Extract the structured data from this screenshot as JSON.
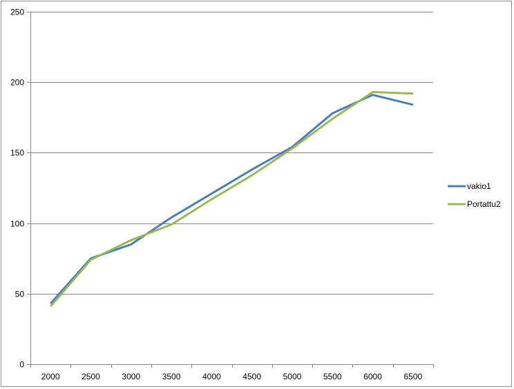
{
  "chart_data": {
    "type": "line",
    "title": "",
    "xlabel": "",
    "ylabel": "",
    "categories": [
      "2000",
      "2500",
      "3000",
      "3500",
      "4000",
      "4500",
      "5000",
      "5500",
      "6000",
      "6500"
    ],
    "ylim": [
      0,
      250
    ],
    "yticks": [
      0,
      50,
      100,
      150,
      200,
      250
    ],
    "grid": "horizontal",
    "legend": "right",
    "series": [
      {
        "name": "vakio1",
        "color": "#4a7ebb",
        "values": [
          43,
          75,
          85,
          104,
          121,
          138,
          154,
          178,
          191,
          184
        ]
      },
      {
        "name": "Portattu2",
        "color": "#98b954",
        "values": [
          41,
          74,
          88,
          99,
          117,
          134,
          153,
          174,
          193,
          192
        ]
      }
    ]
  }
}
